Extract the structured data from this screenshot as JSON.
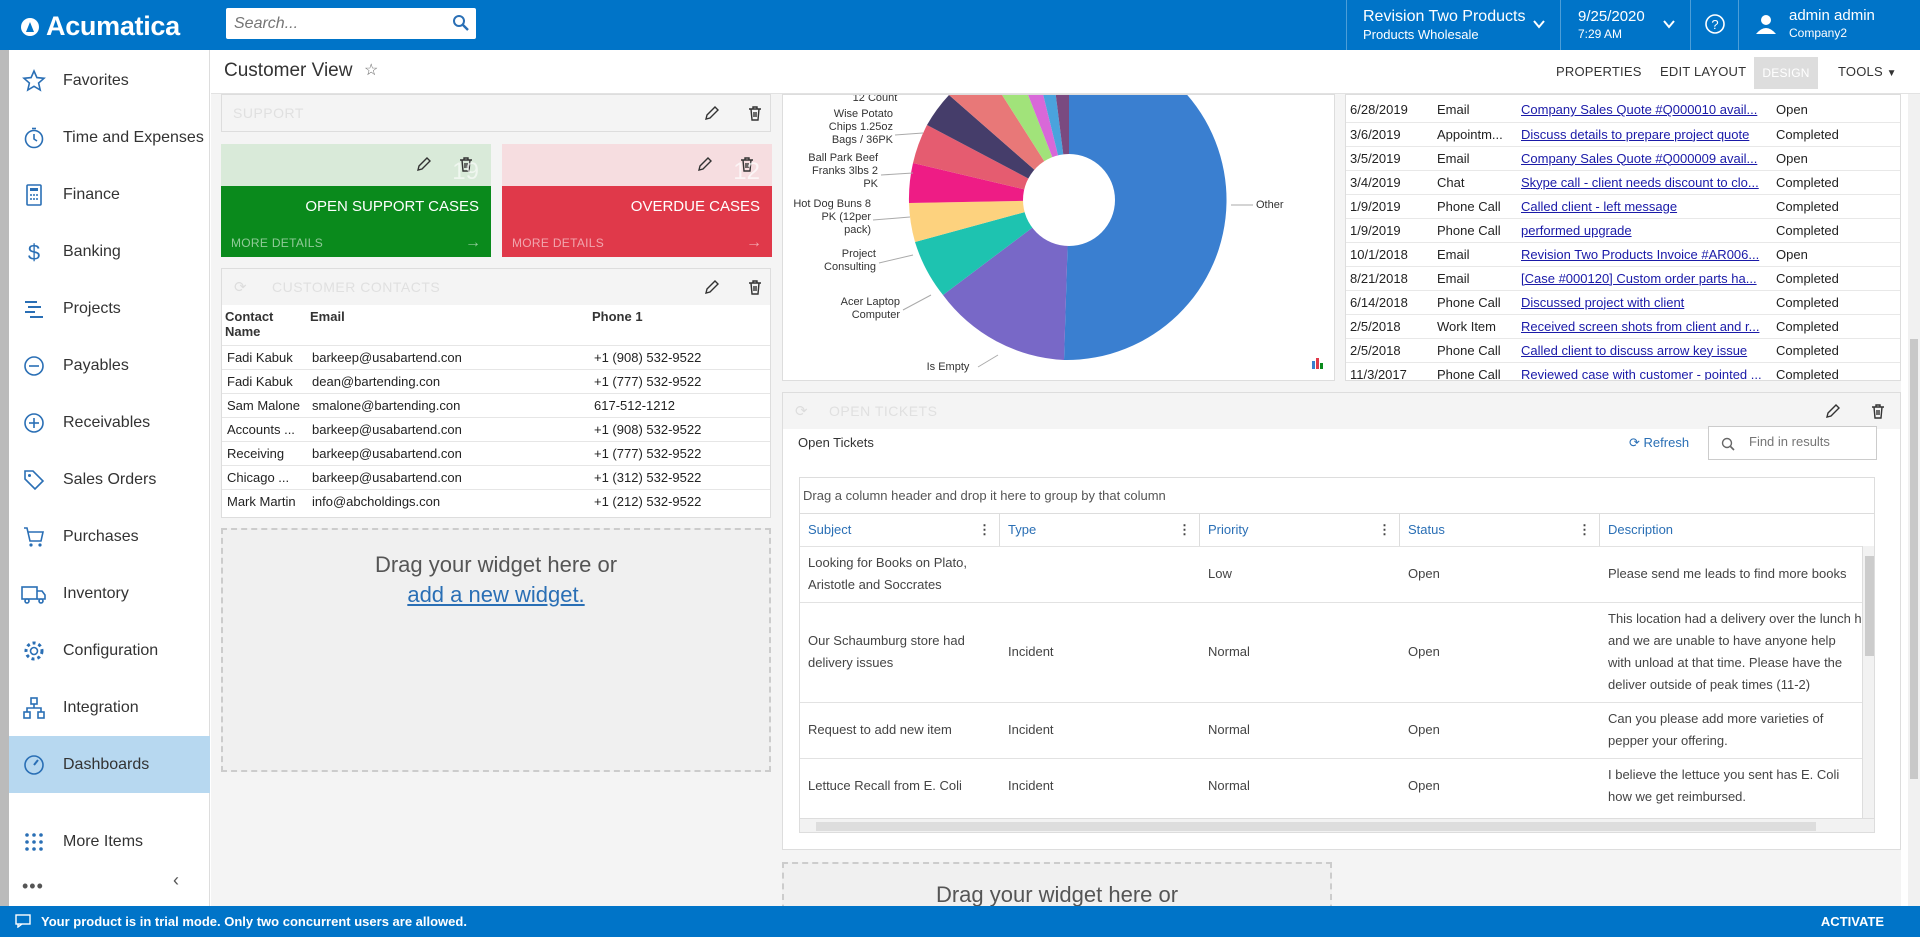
{
  "app": {
    "logo_text": "Acumatica"
  },
  "topbar": {
    "search_placeholder": "Search...",
    "tenant_line1": "Revision Two Products",
    "tenant_line2": "Products Wholesale",
    "date": "9/25/2020",
    "time": "7:29 AM",
    "user_name": "admin admin",
    "user_company": "Company2"
  },
  "sidebar": {
    "items": [
      {
        "label": "Favorites",
        "icon": "star-icon"
      },
      {
        "label": "Time and Expenses",
        "icon": "clock-icon"
      },
      {
        "label": "Finance",
        "icon": "calculator-icon"
      },
      {
        "label": "Banking",
        "icon": "dollar-icon"
      },
      {
        "label": "Projects",
        "icon": "projects-icon"
      },
      {
        "label": "Payables",
        "icon": "minus-circle-icon"
      },
      {
        "label": "Receivables",
        "icon": "plus-circle-icon"
      },
      {
        "label": "Sales Orders",
        "icon": "tag-icon"
      },
      {
        "label": "Purchases",
        "icon": "cart-icon"
      },
      {
        "label": "Inventory",
        "icon": "truck-icon"
      },
      {
        "label": "Configuration",
        "icon": "gear-icon"
      },
      {
        "label": "Integration",
        "icon": "integration-icon"
      },
      {
        "label": "Dashboards",
        "icon": "dashboard-icon"
      },
      {
        "label": "More Items",
        "icon": "grid-icon"
      }
    ]
  },
  "header": {
    "title": "Customer View",
    "properties": "PROPERTIES",
    "edit_layout": "EDIT LAYOUT",
    "design": "DESIGN",
    "tools": "TOOLS"
  },
  "widgets": {
    "support": {
      "title": "SUPPORT"
    },
    "kpi_open": {
      "value": "19",
      "label": "OPEN SUPPORT CASES",
      "more": "MORE DETAILS",
      "color": "#0a8a1c"
    },
    "kpi_overdue": {
      "value": "12",
      "label": "OVERDUE CASES",
      "more": "MORE DETAILS",
      "color": "#e0394a"
    },
    "contacts": {
      "title": "CUSTOMER CONTACTS",
      "headers": [
        "Contact Name",
        "Email",
        "Phone 1"
      ],
      "rows": [
        [
          "Fadi Kabuk",
          "barkeep@usabartend.con",
          "+1 (908) 532-9522"
        ],
        [
          "Fadi Kabuk",
          "dean@bartending.con",
          "+1 (777) 532-9522"
        ],
        [
          "Sam Malone",
          "smalone@bartending.con",
          "617-512-1212"
        ],
        [
          "Accounts ...",
          "barkeep@usabartend.con",
          "+1 (908) 532-9522"
        ],
        [
          "Receiving",
          "barkeep@usabartend.con",
          "+1 (777) 532-9522"
        ],
        [
          "Chicago ...",
          "barkeep@usabartend.con",
          "+1 (312) 532-9522"
        ],
        [
          "Mark Martin",
          "info@abcholdings.con",
          "+1 (212) 532-9522"
        ]
      ]
    },
    "dropzone": {
      "line1": "Drag your widget here or",
      "line2": "add a new widget."
    },
    "pie": {
      "labels": [
        "12 Count",
        "Wise Potato Chips 1.25oz Bags / 36PK",
        "Ball Park Beef Franks 3lbs 2 PK",
        "Hot Dog Buns 8 PK (12per pack)",
        "Project Consulting",
        "Acer Laptop Computer",
        "Is Empty",
        "Other"
      ]
    },
    "activities": {
      "rows": [
        [
          "6/28/2019",
          "Email",
          "Company Sales Quote #Q000010 avail...",
          "Open"
        ],
        [
          "3/6/2019",
          "Appointm...",
          "Discuss details to prepare project quote",
          "Completed"
        ],
        [
          "3/5/2019",
          "Email",
          "Company Sales Quote #Q000009 avail...",
          "Open"
        ],
        [
          "3/4/2019",
          "Chat",
          "Skype call - client needs discount to clo...",
          "Completed"
        ],
        [
          "1/9/2019",
          "Phone Call",
          "Called client - left message",
          "Completed"
        ],
        [
          "1/9/2019",
          "Phone Call",
          "performed upgrade",
          "Completed"
        ],
        [
          "10/1/2018",
          "Email",
          "Revision Two Products Invoice #AR006...",
          "Open"
        ],
        [
          "8/21/2018",
          "Email",
          "[Case #000120] Custom order parts ha...",
          "Completed"
        ],
        [
          "6/14/2018",
          "Phone Call",
          "Discussed project with client",
          "Completed"
        ],
        [
          "2/5/2018",
          "Work Item",
          "Received screen shots from client and r...",
          "Completed"
        ],
        [
          "2/5/2018",
          "Phone Call",
          "Called client to discuss arrow key issue",
          "Completed"
        ],
        [
          "11/3/2017",
          "Phone Call",
          "Reviewed case with customer - pointed ...",
          "Completed"
        ]
      ]
    },
    "tickets": {
      "title": "OPEN TICKETS",
      "caption": "Open Tickets",
      "refresh": "Refresh",
      "find_placeholder": "Find in results",
      "group_hint": "Drag a column header and drop it here to group by that column",
      "headers": [
        "Subject",
        "Type",
        "Priority",
        "Status",
        "Description"
      ],
      "rows": [
        {
          "subject": "Looking for Books on Plato, Aristotle and Soccrates",
          "type": "",
          "priority": "Low",
          "status": "Open",
          "description": "Please send me leads to find more books"
        },
        {
          "subject": "Our Schaumburg store had delivery issues",
          "type": "Incident",
          "priority": "Normal",
          "status": "Open",
          "description": "This location had a delivery over the lunch h and we are unable to have anyone help with unload at that time. Please have the deliver outside of peak times (11-2)"
        },
        {
          "subject": "Request to add new item",
          "type": "Incident",
          "priority": "Normal",
          "status": "Open",
          "description": "Can you please add more varieties of pepper your offering."
        },
        {
          "subject": "Lettuce Recall from E. Coli",
          "type": "Incident",
          "priority": "Normal",
          "status": "Open",
          "description": "I believe the lettuce you sent has E. Coli how we get reimbursed."
        }
      ]
    },
    "dropzone2": {
      "line1": "Drag your widget here or"
    }
  },
  "footer": {
    "message": "Your product is in trial mode. Only two concurrent users are allowed.",
    "activate": "ACTIVATE"
  }
}
